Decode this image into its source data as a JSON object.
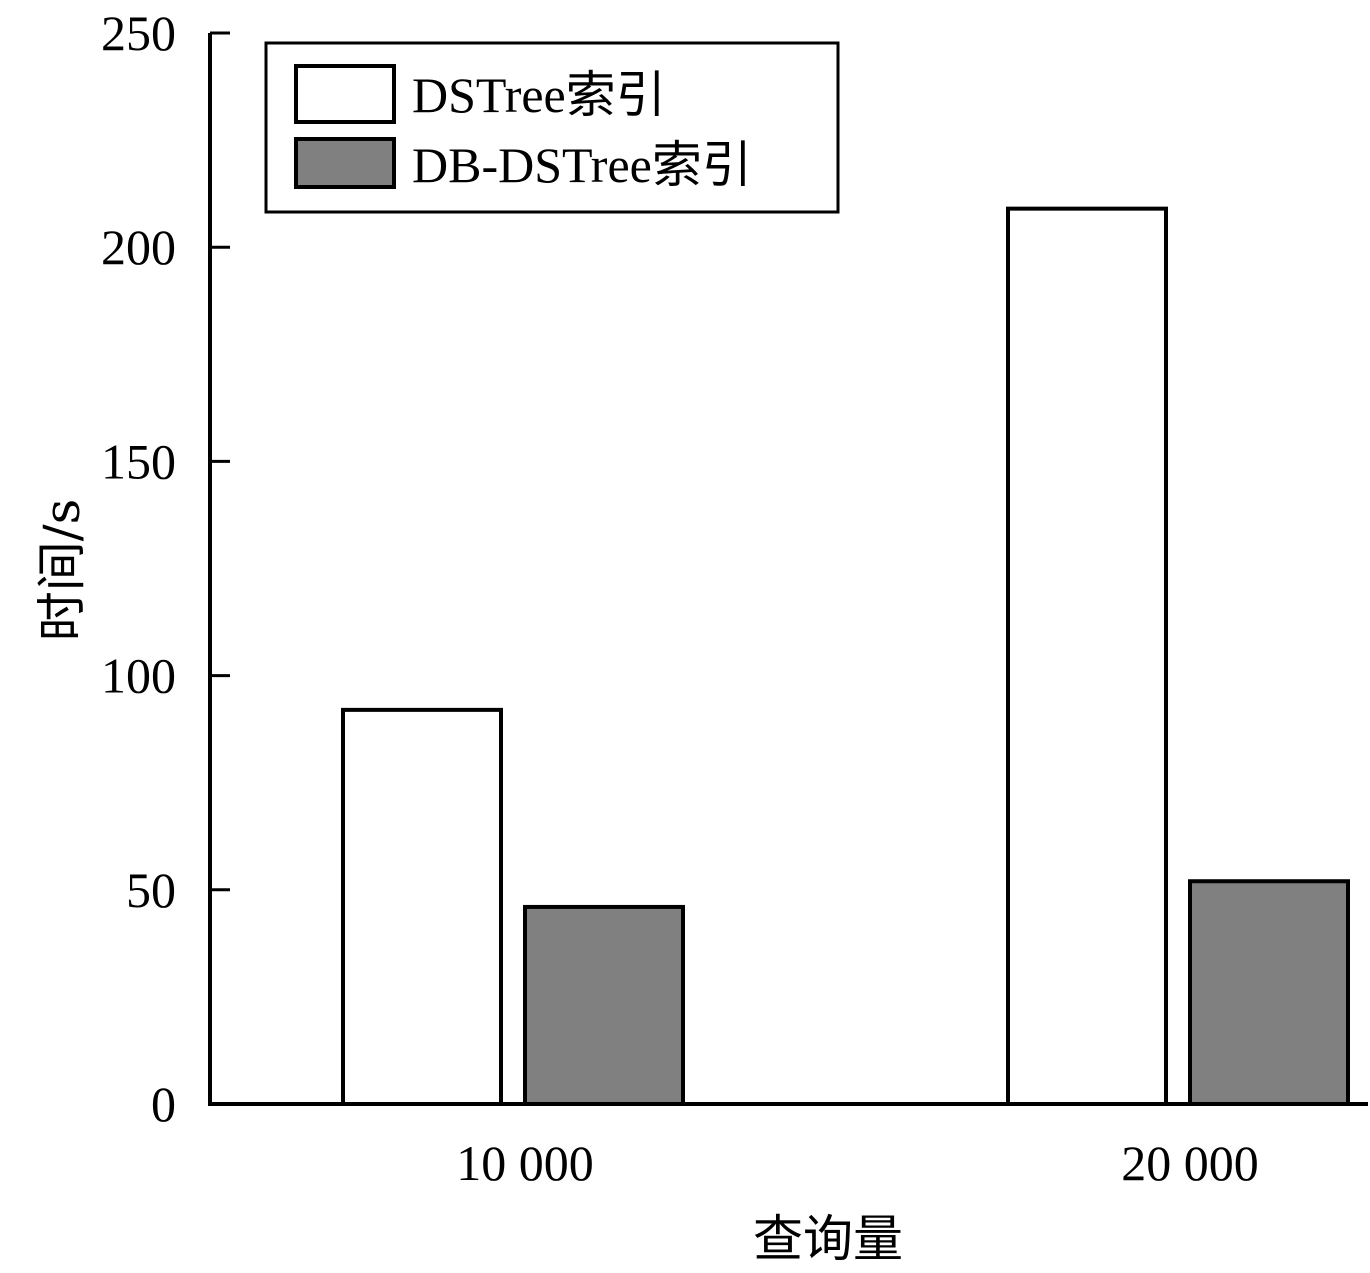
{
  "chart_data": {
    "type": "bar",
    "title": "",
    "xlabel": "查询量",
    "ylabel": "时间/s",
    "categories": [
      "10 000",
      "20 000"
    ],
    "series": [
      {
        "name": "DSTree索引",
        "values": [
          92,
          209
        ],
        "color": "#ffffff"
      },
      {
        "name": "DB-DSTree索引",
        "values": [
          46,
          52
        ],
        "color": "#808080"
      }
    ],
    "ylim": [
      0,
      250
    ],
    "yticks": [
      "0",
      "50",
      "100",
      "150",
      "200",
      "250"
    ],
    "grid": false,
    "legend_position": "top-left"
  }
}
